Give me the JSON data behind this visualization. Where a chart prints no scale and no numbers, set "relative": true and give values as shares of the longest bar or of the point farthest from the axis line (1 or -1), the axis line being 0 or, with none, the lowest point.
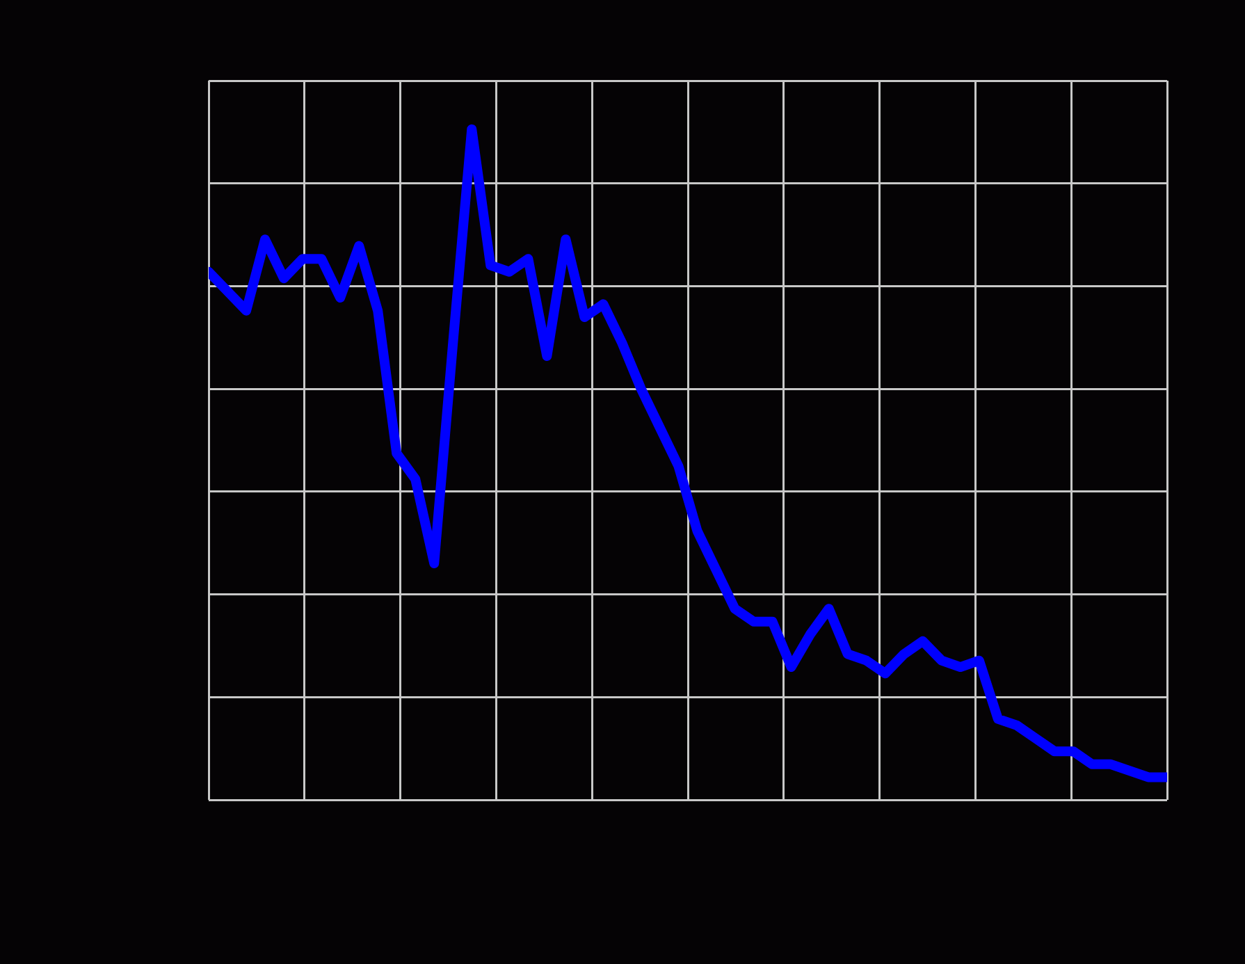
{
  "chart_data": {
    "type": "line",
    "relative": true,
    "grid": true,
    "legend": false,
    "marker": "none",
    "line_style": "solid",
    "categories": [
      null,
      null,
      null,
      null,
      null,
      null,
      null,
      null,
      null,
      null,
      null,
      null,
      null,
      null,
      null,
      null,
      null,
      null,
      null,
      null,
      null,
      null,
      null,
      null,
      null,
      null,
      null,
      null,
      null,
      null,
      null,
      null,
      null,
      null,
      null,
      null,
      null,
      null,
      null,
      null,
      null,
      null,
      null,
      null,
      null,
      null,
      null,
      null,
      null,
      null,
      null,
      null
    ],
    "series": [
      {
        "color": "#0000ff",
        "values": [
          0.78,
          0.75,
          0.72,
          0.83,
          0.77,
          0.8,
          0.8,
          0.74,
          0.82,
          0.72,
          0.5,
          0.46,
          0.33,
          0.67,
          1,
          0.79,
          0.78,
          0.8,
          0.65,
          0.83,
          0.71,
          0.73,
          0.67,
          0.6,
          0.54,
          0.48,
          0.38,
          0.32,
          0.26,
          0.24,
          0.24,
          0.17,
          0.22,
          0.26,
          0.19,
          0.18,
          0.16,
          0.19,
          0.21,
          0.18,
          0.17,
          0.18,
          0.09,
          0.08,
          0.06,
          0.04,
          0.04,
          0.02,
          0.02,
          0.01,
          0,
          0
        ]
      }
    ]
  }
}
